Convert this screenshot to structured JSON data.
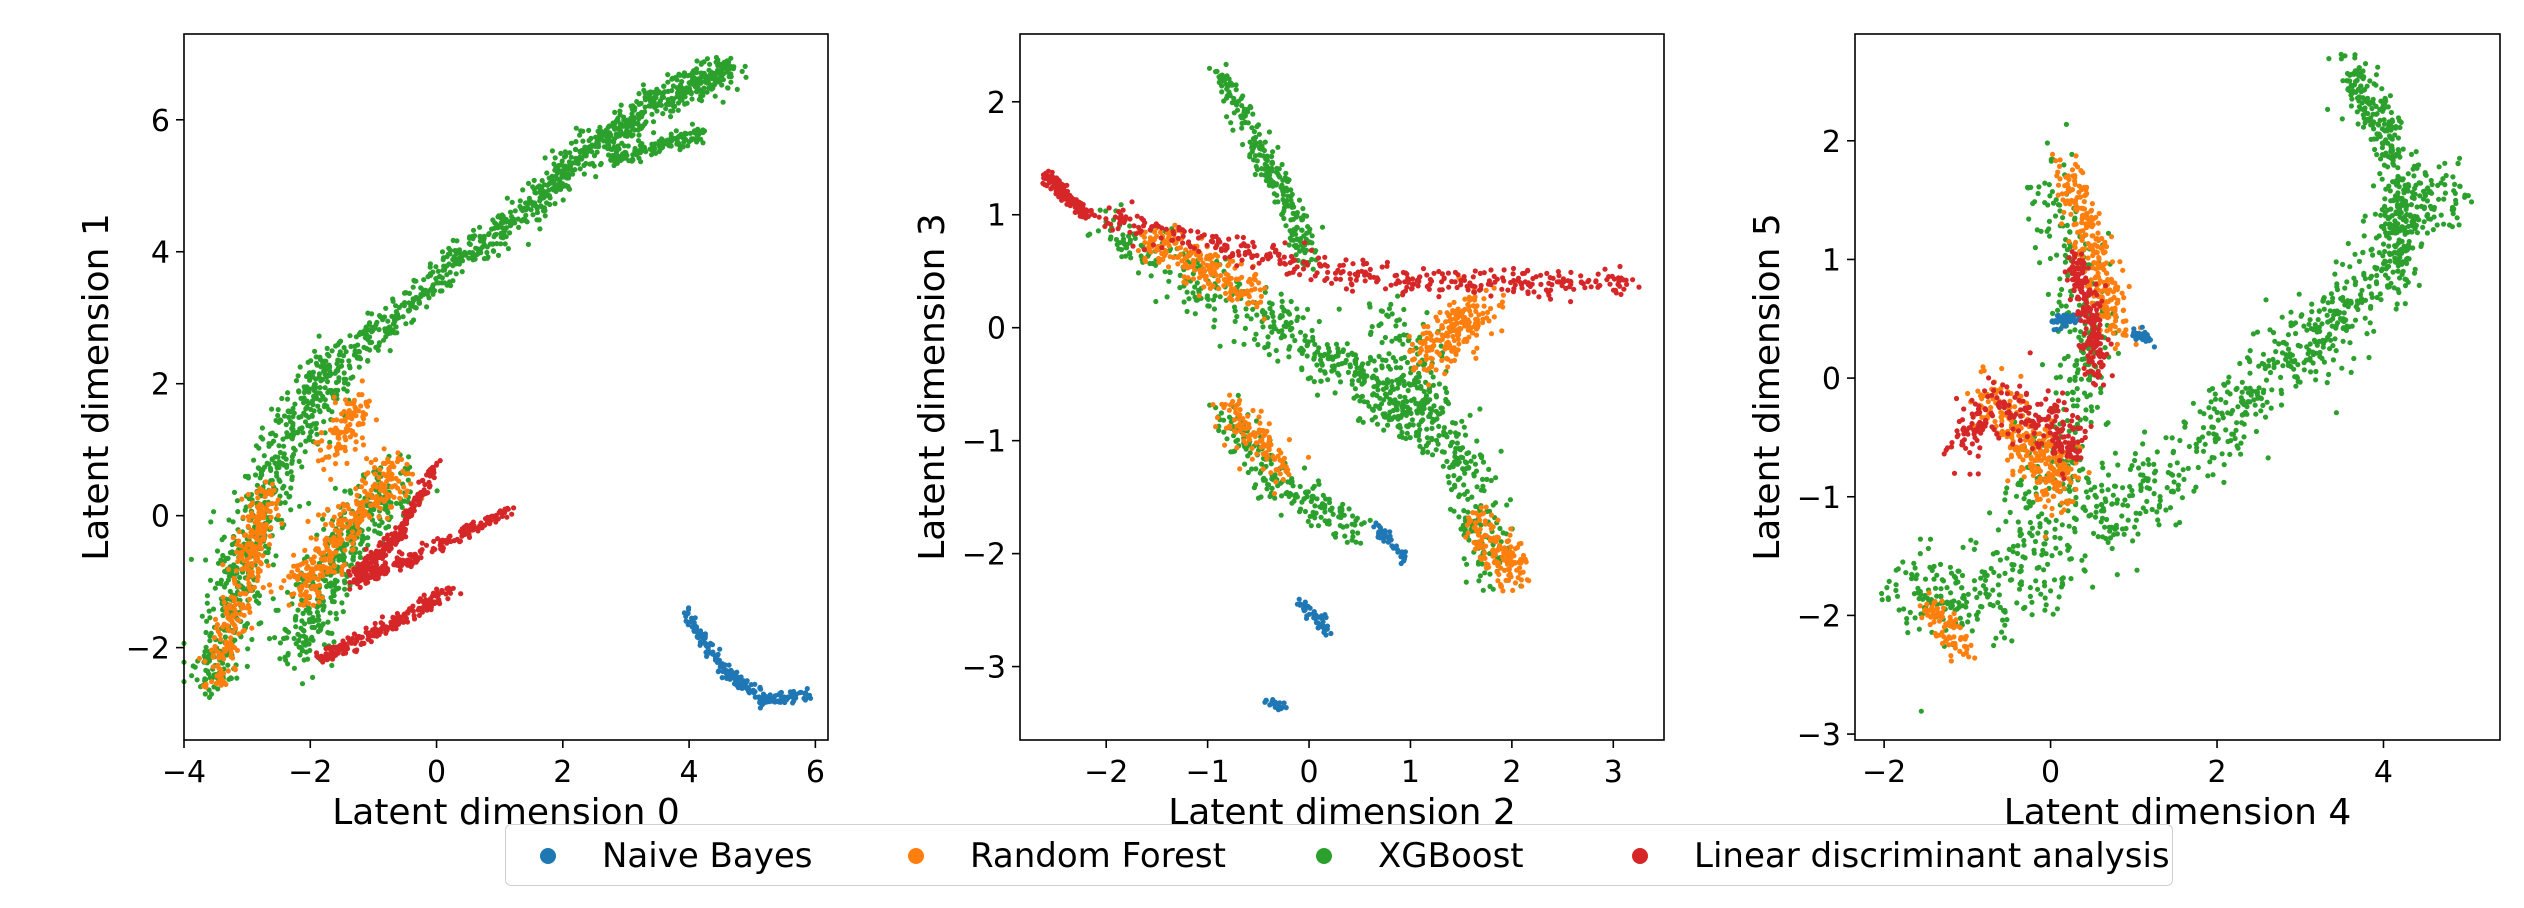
{
  "colors": {
    "naive_bayes": "#1f77b4",
    "random_forest": "#ff7f0e",
    "xgboost": "#2ca02c",
    "lda": "#d62728"
  },
  "legend": {
    "items": [
      {
        "label": "Naive Bayes",
        "color": "#1f77b4"
      },
      {
        "label": "Random Forest",
        "color": "#ff7f0e"
      },
      {
        "label": "XGBoost",
        "color": "#2ca02c"
      },
      {
        "label": "Linear discriminant analysis",
        "color": "#d62728"
      }
    ]
  },
  "chart_data": [
    {
      "type": "scatter",
      "xlabel": "Latent dimension 0",
      "ylabel": "Latent dimension 1",
      "xlim": [
        -4,
        6.2
      ],
      "ylim": [
        -3.4,
        7.3
      ],
      "xticks": [
        -4,
        -2,
        0,
        2,
        4,
        6
      ],
      "yticks": [
        -2,
        0,
        2,
        4,
        6
      ],
      "xtick_labels": [
        "−4",
        "−2",
        "0",
        "2",
        "4",
        "6"
      ],
      "ytick_labels": [
        "−2",
        "0",
        "2",
        "4",
        "6"
      ],
      "clusters": [
        {
          "series": "xgboost",
          "n": 900,
          "path": [
            [
              -1.4,
              2.4
            ],
            [
              0,
              3.6
            ],
            [
              1.5,
              4.7
            ],
            [
              2.5,
              5.6
            ],
            [
              3.5,
              6.3
            ],
            [
              4.7,
              6.8
            ]
          ],
          "spread": 0.22
        },
        {
          "series": "xgboost",
          "n": 140,
          "path": [
            [
              2.8,
              5.4
            ],
            [
              4.2,
              5.8
            ]
          ],
          "spread": 0.1
        },
        {
          "series": "xgboost",
          "n": 650,
          "path": [
            [
              -3.6,
              -2.6
            ],
            [
              -3.0,
              -0.5
            ],
            [
              -2.3,
              1.2
            ],
            [
              -1.6,
              2.4
            ]
          ],
          "spread": 0.35
        },
        {
          "series": "xgboost",
          "n": 400,
          "path": [
            [
              -2.2,
              -2.2
            ],
            [
              -1.6,
              -0.6
            ],
            [
              -0.6,
              0.6
            ]
          ],
          "spread": 0.35
        },
        {
          "series": "random_forest",
          "n": 280,
          "path": [
            [
              -3.5,
              -2.6
            ],
            [
              -3.0,
              -0.8
            ],
            [
              -2.7,
              0.4
            ]
          ],
          "spread": 0.22
        },
        {
          "series": "random_forest",
          "n": 320,
          "path": [
            [
              -2.2,
              -1.2
            ],
            [
              -1.5,
              -0.2
            ],
            [
              -0.6,
              0.7
            ]
          ],
          "spread": 0.28
        },
        {
          "series": "random_forest",
          "n": 100,
          "path": [
            [
              -1.8,
              0.8
            ],
            [
              -1.2,
              1.7
            ]
          ],
          "spread": 0.25
        },
        {
          "series": "lda",
          "n": 220,
          "path": [
            [
              -1.3,
              -0.9
            ],
            [
              -0.6,
              -0.3
            ],
            [
              0,
              0.8
            ]
          ],
          "spread": 0.08
        },
        {
          "series": "lda",
          "n": 220,
          "path": [
            [
              -1.3,
              -1.0
            ],
            [
              -0.3,
              -0.6
            ],
            [
              1.2,
              0.1
            ]
          ],
          "spread": 0.1
        },
        {
          "series": "lda",
          "n": 200,
          "path": [
            [
              -1.9,
              -2.2
            ],
            [
              -0.8,
              -1.7
            ],
            [
              0.3,
              -1.1
            ]
          ],
          "spread": 0.1
        },
        {
          "series": "naive_bayes",
          "n": 200,
          "path": [
            [
              3.9,
              -1.4
            ],
            [
              4.5,
              -2.3
            ],
            [
              5.2,
              -2.8
            ],
            [
              5.9,
              -2.7
            ]
          ],
          "spread": 0.08
        }
      ]
    },
    {
      "type": "scatter",
      "xlabel": "Latent dimension 2",
      "ylabel": "Latent dimension 3",
      "xlim": [
        -2.85,
        3.5
      ],
      "ylim": [
        -3.65,
        2.6
      ],
      "xticks": [
        -2,
        -1,
        0,
        1,
        2,
        3
      ],
      "yticks": [
        -3,
        -2,
        -1,
        0,
        1,
        2
      ],
      "xtick_labels": [
        "−2",
        "−1",
        "0",
        "1",
        "2",
        "3"
      ],
      "ytick_labels": [
        "−3",
        "−2",
        "−1",
        "0",
        "1",
        "2"
      ],
      "clusters": [
        {
          "series": "xgboost",
          "n": 260,
          "path": [
            [
              -0.9,
              2.3
            ],
            [
              -0.5,
              1.6
            ],
            [
              -0.2,
              1.1
            ],
            [
              0,
              0.6
            ]
          ],
          "spread": 0.1
        },
        {
          "series": "xgboost",
          "n": 500,
          "path": [
            [
              -2.0,
              0.9
            ],
            [
              -0.5,
              0.1
            ],
            [
              0.6,
              -0.5
            ],
            [
              1.2,
              -0.9
            ]
          ],
          "spread": 0.22
        },
        {
          "series": "xgboost",
          "n": 300,
          "path": [
            [
              0.8,
              0.1
            ],
            [
              1.2,
              -0.6
            ],
            [
              1.6,
              -1.4
            ],
            [
              1.8,
              -2.2
            ]
          ],
          "spread": 0.22
        },
        {
          "series": "xgboost",
          "n": 220,
          "path": [
            [
              -0.8,
              -0.8
            ],
            [
              -0.3,
              -1.4
            ],
            [
              0.5,
              -1.8
            ]
          ],
          "spread": 0.15
        },
        {
          "series": "random_forest",
          "n": 220,
          "path": [
            [
              -1.6,
              0.8
            ],
            [
              -0.5,
              0.3
            ]
          ],
          "spread": 0.15
        },
        {
          "series": "random_forest",
          "n": 200,
          "path": [
            [
              1.1,
              -0.3
            ],
            [
              1.5,
              0
            ],
            [
              1.7,
              0.2
            ]
          ],
          "spread": 0.18
        },
        {
          "series": "random_forest",
          "n": 150,
          "path": [
            [
              1.6,
              -1.7
            ],
            [
              1.9,
              -2.0
            ],
            [
              2.0,
              -2.2
            ]
          ],
          "spread": 0.15
        },
        {
          "series": "random_forest",
          "n": 120,
          "path": [
            [
              -0.8,
              -0.7
            ],
            [
              -0.2,
              -1.3
            ]
          ],
          "spread": 0.15
        },
        {
          "series": "lda",
          "n": 150,
          "path": [
            [
              -2.6,
              1.35
            ],
            [
              -2.2,
              1.0
            ]
          ],
          "spread": 0.05
        },
        {
          "series": "lda",
          "n": 380,
          "path": [
            [
              -2.0,
              0.95
            ],
            [
              -1.0,
              0.75
            ],
            [
              0,
              0.55
            ],
            [
              1.0,
              0.4
            ],
            [
              2.0,
              0.4
            ],
            [
              3.2,
              0.4
            ]
          ],
          "spread": 0.1
        },
        {
          "series": "naive_bayes",
          "n": 40,
          "path": [
            [
              0.65,
              -1.75
            ],
            [
              0.95,
              -2.05
            ]
          ],
          "spread": 0.04
        },
        {
          "series": "naive_bayes",
          "n": 45,
          "path": [
            [
              -0.1,
              -2.4
            ],
            [
              0.2,
              -2.7
            ]
          ],
          "spread": 0.05
        },
        {
          "series": "naive_bayes",
          "n": 25,
          "path": [
            [
              -0.45,
              -3.3
            ],
            [
              -0.25,
              -3.35
            ]
          ],
          "spread": 0.03
        }
      ]
    },
    {
      "type": "scatter",
      "xlabel": "Latent dimension 4",
      "ylabel": "Latent dimension 5",
      "xlim": [
        -2.35,
        5.4
      ],
      "ylim": [
        -3.05,
        2.9
      ],
      "xticks": [
        -2,
        0,
        2,
        4
      ],
      "yticks": [
        -3,
        -2,
        -1,
        0,
        1,
        2
      ],
      "xtick_labels": [
        "−2",
        "0",
        "2",
        "4"
      ],
      "ytick_labels": [
        "−3",
        "−2",
        "−1",
        "0",
        "1",
        "2"
      ],
      "clusters": [
        {
          "series": "xgboost",
          "n": 320,
          "path": [
            [
              3.6,
              2.6
            ],
            [
              4.0,
              2.1
            ],
            [
              4.2,
              1.5
            ],
            [
              4.2,
              0.8
            ]
          ],
          "spread": 0.2
        },
        {
          "series": "xgboost",
          "n": 520,
          "path": [
            [
              1.8,
              -0.6
            ],
            [
              2.8,
              0.1
            ],
            [
              3.5,
              0.5
            ],
            [
              4.2,
              1.3
            ],
            [
              4.8,
              1.6
            ]
          ],
          "spread": 0.28
        },
        {
          "series": "xgboost",
          "n": 400,
          "path": [
            [
              -1.7,
              -1.8
            ],
            [
              -1.0,
              -1.8
            ],
            [
              0,
              -1.6
            ],
            [
              0.8,
              -1.0
            ],
            [
              1.5,
              -0.9
            ]
          ],
          "spread": 0.35
        },
        {
          "series": "xgboost",
          "n": 320,
          "path": [
            [
              0,
              1.8
            ],
            [
              0.3,
              1.0
            ],
            [
              0.5,
              0.2
            ],
            [
              0.2,
              -0.6
            ],
            [
              -0.5,
              -1.2
            ]
          ],
          "spread": 0.3
        },
        {
          "series": "random_forest",
          "n": 260,
          "path": [
            [
              0.2,
              1.7
            ],
            [
              0.5,
              1.1
            ],
            [
              0.8,
              0.4
            ]
          ],
          "spread": 0.18
        },
        {
          "series": "random_forest",
          "n": 280,
          "path": [
            [
              -0.8,
              -0.2
            ],
            [
              -0.2,
              -0.6
            ],
            [
              0.2,
              -0.9
            ]
          ],
          "spread": 0.25
        },
        {
          "series": "random_forest",
          "n": 80,
          "path": [
            [
              -1.5,
              -1.9
            ],
            [
              -1.0,
              -2.3
            ]
          ],
          "spread": 0.12
        },
        {
          "series": "lda",
          "n": 200,
          "path": [
            [
              0.3,
              1.0
            ],
            [
              0.5,
              0.5
            ],
            [
              0.6,
              0.0
            ]
          ],
          "spread": 0.12
        },
        {
          "series": "lda",
          "n": 240,
          "path": [
            [
              -1.2,
              -0.6
            ],
            [
              -0.6,
              -0.2
            ],
            [
              0,
              -0.4
            ],
            [
              0.3,
              -0.6
            ]
          ],
          "spread": 0.18
        },
        {
          "series": "naive_bayes",
          "n": 40,
          "path": [
            [
              0,
              0.45
            ],
            [
              0.3,
              0.5
            ]
          ],
          "spread": 0.05
        },
        {
          "series": "naive_bayes",
          "n": 30,
          "path": [
            [
              1.0,
              0.4
            ],
            [
              1.2,
              0.3
            ]
          ],
          "spread": 0.05
        }
      ]
    }
  ]
}
